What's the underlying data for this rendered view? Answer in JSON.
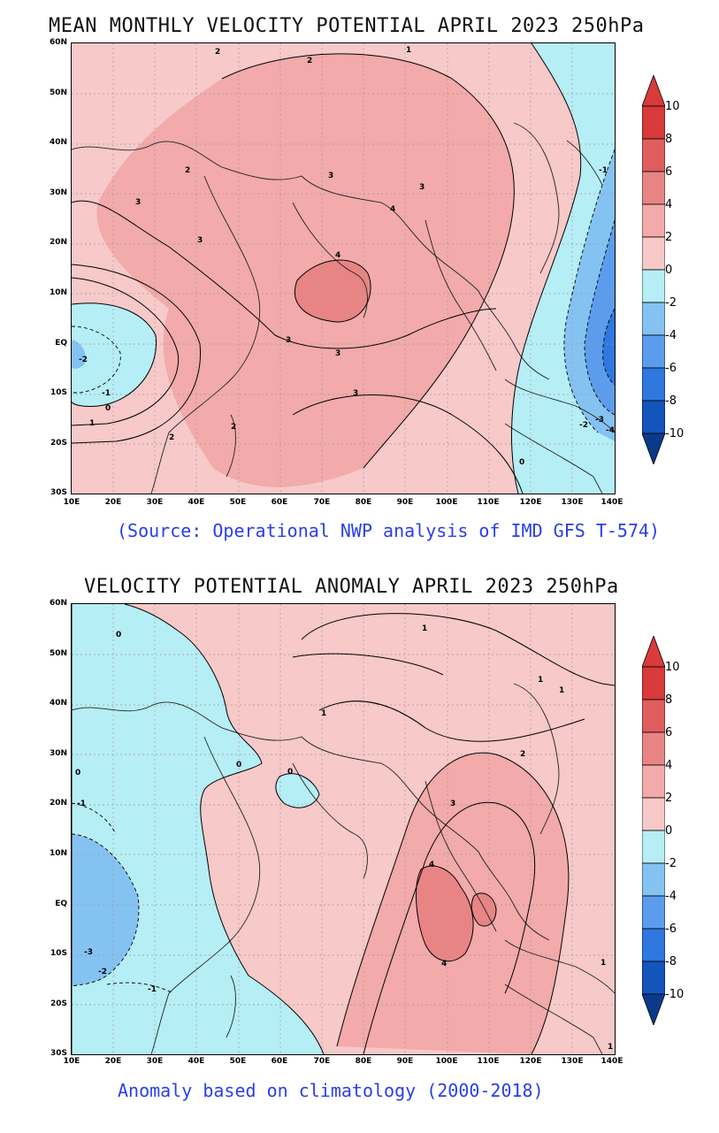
{
  "panel1": {
    "title": "MEAN MONTHLY VELOCITY POTENTIAL APRIL 2023 250hPa",
    "source": "(Source: Operational NWP analysis of IMD GFS T-574)",
    "lat_labels": [
      "60N",
      "50N",
      "40N",
      "30N",
      "20N",
      "10N",
      "EQ",
      "10S",
      "20S",
      "30S"
    ],
    "lon_labels": [
      "10E",
      "20E",
      "30E",
      "40E",
      "50E",
      "60E",
      "70E",
      "80E",
      "90E",
      "100E",
      "110E",
      "120E",
      "130E",
      "140E"
    ],
    "contour_labels": [
      "2",
      "2",
      "1",
      "2",
      "3",
      "3",
      "3",
      "4",
      "3",
      "4",
      "3",
      "3",
      "3",
      "2",
      "2",
      "-2",
      "-1",
      "0",
      "1",
      "0",
      "-1",
      "-2",
      "-3",
      "-4"
    ],
    "colorbar_ticks": [
      "10",
      "8",
      "6",
      "4",
      "2",
      "0",
      "-2",
      "-4",
      "-6",
      "-8",
      "-10"
    ]
  },
  "panel2": {
    "title": "VELOCITY POTENTIAL ANOMALY APRIL 2023 250hPa",
    "source": "Anomaly based on climatology (2000-2018)",
    "lat_labels": [
      "60N",
      "50N",
      "40N",
      "30N",
      "20N",
      "10N",
      "EQ",
      "10S",
      "20S",
      "30S"
    ],
    "lon_labels": [
      "10E",
      "20E",
      "30E",
      "40E",
      "50E",
      "60E",
      "70E",
      "80E",
      "90E",
      "100E",
      "110E",
      "120E",
      "130E",
      "140E"
    ],
    "contour_labels": [
      "0",
      "1",
      "1",
      "1",
      "1",
      "2",
      "0",
      "0",
      "0",
      "-1",
      "3",
      "4",
      "4",
      "-3",
      "-2",
      "-1",
      "1",
      "1"
    ],
    "colorbar_ticks": [
      "10",
      "8",
      "6",
      "4",
      "2",
      "0",
      "-2",
      "-4",
      "-6",
      "-8",
      "-10"
    ]
  },
  "colors": {
    "pos_0_2": "#f7c9c9",
    "pos_2_4": "#f2aaaa",
    "pos_4_6": "#e98484",
    "pos_6_8": "#e05d5d",
    "pos_8_10": "#d93a3a",
    "neg_0_2": "#b6eef6",
    "neg_2_4": "#84c2f2",
    "neg_4_6": "#5c9cec",
    "neg_6_8": "#2e78e0",
    "neg_8_10": "#1455bb",
    "neg_deep": "#0a3a8a",
    "source_text": "#2a3fe6"
  }
}
